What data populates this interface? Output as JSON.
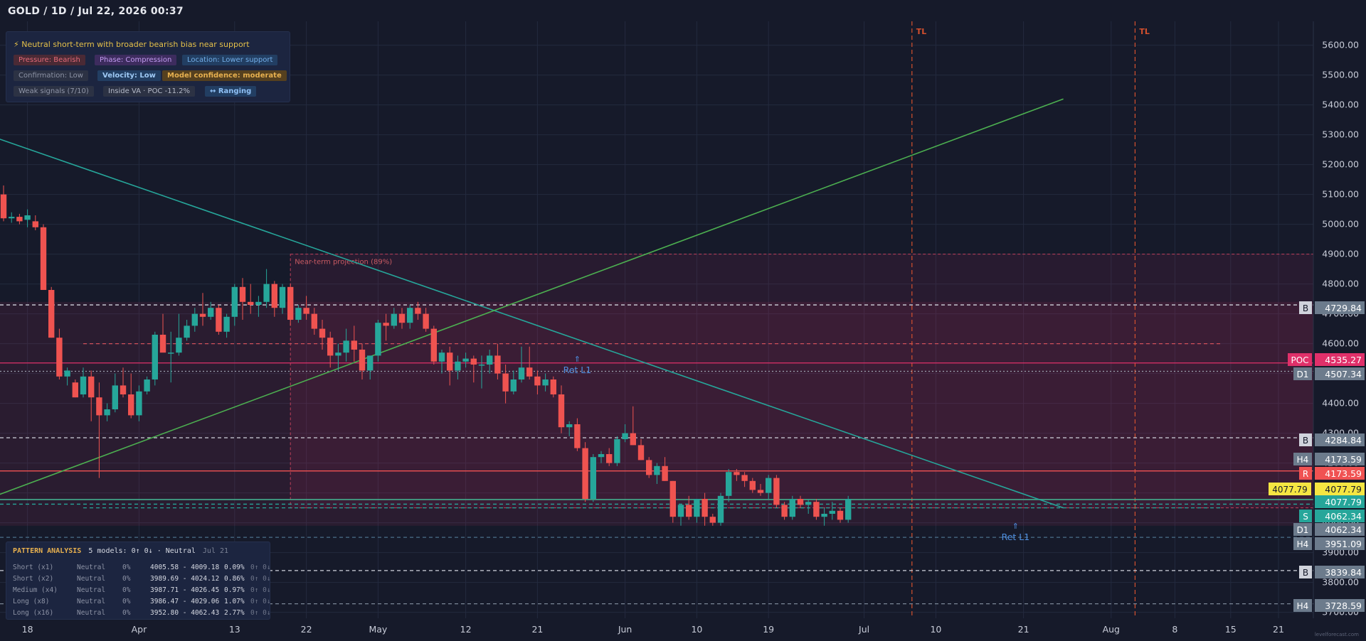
{
  "header": {
    "title": "GOLD / 1D / Jul 22, 2026 00:37"
  },
  "signals": {
    "headline": "⚡ Neutral short-term with broader bearish bias near support",
    "chips": [
      {
        "text": "Pressure: Bearish",
        "bg": "#4a2a35",
        "fg": "#e46a78"
      },
      {
        "text": "Phase: Compression",
        "bg": "#3d2c5e",
        "fg": "#c39cf2"
      },
      {
        "text": "Location: Lower support",
        "bg": "#223e62",
        "fg": "#73aee8"
      },
      {
        "text": "Confirmation: Low",
        "bg": "#2c3244",
        "fg": "#8d93a5"
      },
      {
        "text": "Velocity: Low",
        "bg": "#223e62",
        "fg": "#9fcaf5"
      },
      {
        "text": "Model confidence: moderate",
        "bg": "#55401f",
        "fg": "#e7b04f"
      },
      {
        "text": "Weak signals (7/10)",
        "bg": "#2c3244",
        "fg": "#9096a8"
      },
      {
        "text": "Inside VA · POC -11.2%",
        "bg": "#2c3244",
        "fg": "#b6bbc9"
      },
      {
        "text": "↔ Ranging",
        "bg": "#223e62",
        "fg": "#8fc0f5"
      }
    ]
  },
  "pattern_analysis": {
    "title": "PATTERN ANALYSIS",
    "summary": "5 models: 0↑ 0↓ · Neutral",
    "date": "Jul 21",
    "rows": [
      {
        "name": "Short (x1)",
        "bias": "Neutral",
        "pct": "0%",
        "range": "4005.58 - 4009.18",
        "chg": "0.09%",
        "votes": "0↑ 0↓"
      },
      {
        "name": "Short (x2)",
        "bias": "Neutral",
        "pct": "0%",
        "range": "3989.69 - 4024.12",
        "chg": "0.86%",
        "votes": "0↑ 0↓"
      },
      {
        "name": "Medium (x4)",
        "bias": "Neutral",
        "pct": "0%",
        "range": "3987.71 - 4026.45",
        "chg": "0.97%",
        "votes": "0↑ 0↓"
      },
      {
        "name": "Long (x8)",
        "bias": "Neutral",
        "pct": "0%",
        "range": "3986.47 - 4029.06",
        "chg": "1.07%",
        "votes": "0↑ 0↓"
      },
      {
        "name": "Long (x16)",
        "bias": "Neutral",
        "pct": "0%",
        "range": "3952.80 - 4062.43",
        "chg": "2.77%",
        "votes": "0↑ 0↓"
      }
    ]
  },
  "chart_data": {
    "type": "candlestick",
    "ylim": [
      3680,
      5680
    ],
    "y_ticks": [
      3700,
      3800,
      3900,
      4000,
      4100,
      4200,
      4300,
      4400,
      4500,
      4600,
      4700,
      4800,
      4900,
      5000,
      5100,
      5200,
      5300,
      5400,
      5500,
      5600
    ],
    "x_ticks": [
      {
        "label": "18",
        "day": 3
      },
      {
        "label": "Apr",
        "day": 17
      },
      {
        "label": "13",
        "day": 29
      },
      {
        "label": "22",
        "day": 38
      },
      {
        "label": "May",
        "day": 47
      },
      {
        "label": "12",
        "day": 58
      },
      {
        "label": "21",
        "day": 67
      },
      {
        "label": "Jun",
        "day": 78
      },
      {
        "label": "10",
        "day": 87
      },
      {
        "label": "19",
        "day": 96
      },
      {
        "label": "Jul",
        "day": 108
      },
      {
        "label": "10",
        "day": 117
      },
      {
        "label": "21",
        "day": 128
      },
      {
        "label": "Aug",
        "day": 139
      },
      {
        "label": "8",
        "day": 147
      },
      {
        "label": "15",
        "day": 154
      },
      {
        "label": "21",
        "day": 160
      }
    ],
    "vlines_tl": [
      {
        "label": "TL",
        "day": 114
      },
      {
        "label": "TL",
        "day": 142
      },
      {
        "label": "TL",
        "day": 177
      }
    ],
    "candles": [
      [
        5100,
        5130,
        5010,
        5020
      ],
      [
        5020,
        5040,
        5005,
        5025
      ],
      [
        5025,
        5035,
        5000,
        5010
      ],
      [
        5015,
        5050,
        4990,
        5030
      ],
      [
        5010,
        5030,
        4980,
        4990
      ],
      [
        4990,
        5000,
        4780,
        4780
      ],
      [
        4780,
        4790,
        4620,
        4620
      ],
      [
        4620,
        4650,
        4480,
        4490
      ],
      [
        4490,
        4520,
        4460,
        4510
      ],
      [
        4470,
        4480,
        4420,
        4420
      ],
      [
        4430,
        4520,
        4420,
        4490
      ],
      [
        4490,
        4510,
        4340,
        4420
      ],
      [
        4420,
        4470,
        4150,
        4360
      ],
      [
        4360,
        4400,
        4340,
        4380
      ],
      [
        4380,
        4500,
        4370,
        4460
      ],
      [
        4460,
        4520,
        4420,
        4430
      ],
      [
        4430,
        4500,
        4350,
        4360
      ],
      [
        4360,
        4460,
        4340,
        4440
      ],
      [
        4440,
        4490,
        4430,
        4480
      ],
      [
        4480,
        4640,
        4460,
        4630
      ],
      [
        4630,
        4700,
        4580,
        4570
      ],
      [
        4570,
        4640,
        4470,
        4570
      ],
      [
        4570,
        4700,
        4560,
        4620
      ],
      [
        4620,
        4680,
        4610,
        4660
      ],
      [
        4660,
        4720,
        4640,
        4700
      ],
      [
        4700,
        4770,
        4660,
        4690
      ],
      [
        4690,
        4740,
        4680,
        4720
      ],
      [
        4720,
        4730,
        4630,
        4640
      ],
      [
        4640,
        4700,
        4620,
        4690
      ],
      [
        4690,
        4800,
        4660,
        4790
      ],
      [
        4790,
        4820,
        4680,
        4740
      ],
      [
        4740,
        4800,
        4700,
        4730
      ],
      [
        4730,
        4760,
        4690,
        4740
      ],
      [
        4740,
        4850,
        4720,
        4800
      ],
      [
        4800,
        4810,
        4690,
        4720
      ],
      [
        4720,
        4800,
        4700,
        4790
      ],
      [
        4790,
        4800,
        4660,
        4680
      ],
      [
        4680,
        4730,
        4670,
        4720
      ],
      [
        4720,
        4760,
        4680,
        4700
      ],
      [
        4700,
        4720,
        4630,
        4650
      ],
      [
        4650,
        4680,
        4580,
        4620
      ],
      [
        4620,
        4640,
        4520,
        4560
      ],
      [
        4560,
        4600,
        4510,
        4570
      ],
      [
        4570,
        4650,
        4540,
        4610
      ],
      [
        4610,
        4660,
        4540,
        4580
      ],
      [
        4580,
        4600,
        4480,
        4510
      ],
      [
        4510,
        4560,
        4480,
        4560
      ],
      [
        4560,
        4680,
        4540,
        4670
      ],
      [
        4670,
        4700,
        4610,
        4660
      ],
      [
        4660,
        4720,
        4650,
        4700
      ],
      [
        4700,
        4720,
        4650,
        4670
      ],
      [
        4670,
        4730,
        4650,
        4720
      ],
      [
        4720,
        4740,
        4680,
        4700
      ],
      [
        4700,
        4720,
        4640,
        4650
      ],
      [
        4650,
        4660,
        4530,
        4540
      ],
      [
        4540,
        4580,
        4500,
        4570
      ],
      [
        4570,
        4590,
        4460,
        4510
      ],
      [
        4510,
        4560,
        4480,
        4540
      ],
      [
        4540,
        4570,
        4520,
        4550
      ],
      [
        4550,
        4560,
        4470,
        4530
      ],
      [
        4530,
        4560,
        4450,
        4530
      ],
      [
        4530,
        4580,
        4500,
        4560
      ],
      [
        4560,
        4600,
        4480,
        4500
      ],
      [
        4500,
        4530,
        4400,
        4440
      ],
      [
        4440,
        4510,
        4430,
        4480
      ],
      [
        4480,
        4590,
        4470,
        4520
      ],
      [
        4520,
        4590,
        4480,
        4490
      ],
      [
        4490,
        4510,
        4430,
        4460
      ],
      [
        4460,
        4500,
        4440,
        4480
      ],
      [
        4480,
        4490,
        4420,
        4430
      ],
      [
        4430,
        4460,
        4300,
        4320
      ],
      [
        4320,
        4340,
        4290,
        4330
      ],
      [
        4330,
        4350,
        4240,
        4250
      ],
      [
        4250,
        4270,
        4070,
        4080
      ],
      [
        4080,
        4230,
        4070,
        4220
      ],
      [
        4220,
        4240,
        4200,
        4230
      ],
      [
        4230,
        4250,
        4190,
        4200
      ],
      [
        4200,
        4290,
        4190,
        4280
      ],
      [
        4280,
        4330,
        4270,
        4300
      ],
      [
        4300,
        4390,
        4260,
        4260
      ],
      [
        4260,
        4280,
        4210,
        4210
      ],
      [
        4210,
        4220,
        4150,
        4160
      ],
      [
        4160,
        4200,
        4130,
        4190
      ],
      [
        4190,
        4220,
        4140,
        4140
      ],
      [
        4140,
        4140,
        4000,
        4020
      ],
      [
        4020,
        4060,
        3990,
        4060
      ],
      [
        4060,
        4090,
        4010,
        4020
      ],
      [
        4020,
        4080,
        4000,
        4080
      ],
      [
        4080,
        4100,
        3990,
        4020
      ],
      [
        4020,
        4030,
        3990,
        4000
      ],
      [
        4000,
        4100,
        3990,
        4090
      ],
      [
        4090,
        4180,
        4070,
        4170
      ],
      [
        4170,
        4180,
        4140,
        4160
      ],
      [
        4160,
        4170,
        4120,
        4140
      ],
      [
        4140,
        4150,
        4100,
        4110
      ],
      [
        4110,
        4130,
        4090,
        4100
      ],
      [
        4100,
        4160,
        4080,
        4150
      ],
      [
        4150,
        4160,
        4050,
        4060
      ],
      [
        4060,
        4070,
        4010,
        4020
      ],
      [
        4020,
        4090,
        4010,
        4080
      ],
      [
        4080,
        4090,
        4050,
        4060
      ],
      [
        4060,
        4080,
        4030,
        4070
      ],
      [
        4070,
        4080,
        4010,
        4020
      ],
      [
        4020,
        4050,
        3990,
        4030
      ],
      [
        4030,
        4070,
        4010,
        4040
      ],
      [
        4040,
        4050,
        4000,
        4010
      ],
      [
        4010,
        4090,
        4000,
        4080
      ]
    ],
    "hlines": [
      {
        "price": 4729.84,
        "tag": "B",
        "label": "4729.84",
        "style": "dashed",
        "color": "#d0d3dc"
      },
      {
        "price": 4535.27,
        "tag": "POC",
        "label": "4535.27",
        "style": "solid",
        "color": "#e0306a"
      },
      {
        "price": 4507.34,
        "tag": "D1",
        "label": "4507.34",
        "style": "dotted",
        "color": "#9aa0ad"
      },
      {
        "price": 4284.84,
        "tag": "B",
        "label": "4284.84",
        "style": "dashed",
        "color": "#d0d3dc"
      },
      {
        "price": 4173.59,
        "tag": "H4",
        "label": "4173.59",
        "style": "none",
        "color": "#6c7b8c"
      },
      {
        "price": 4173.59,
        "tag": "R",
        "label": "4173.59",
        "style": "solid",
        "color": "#f05252"
      },
      {
        "price": 4077.79,
        "tag": "",
        "label": "4077.79",
        "style": "solid",
        "color": "#f5e642"
      },
      {
        "price": 4077.79,
        "tag": "",
        "label": "4077.79",
        "style": "solid",
        "color": "#26a69a"
      },
      {
        "price": 4062.34,
        "tag": "S",
        "label": "4062.34",
        "style": "dashed",
        "color": "#26a69a"
      },
      {
        "price": 4062.34,
        "tag": "D1",
        "label": "4062.34",
        "style": "none",
        "color": "#6c7b8c"
      },
      {
        "price": 3951.09,
        "tag": "H4",
        "label": "3951.09",
        "style": "dashed",
        "color": "#4a6f8a"
      },
      {
        "price": 3839.84,
        "tag": "B",
        "label": "3839.84",
        "style": "dashed",
        "color": "#d0d3dc"
      },
      {
        "price": 3728.59,
        "tag": "H4",
        "label": "3728.59",
        "style": "dashed",
        "color": "#7a8696"
      }
    ],
    "projection": {
      "label": "Near-term projection (89%)",
      "day_from": 36,
      "day_to": 183,
      "top": 4900,
      "bottom": 4050
    },
    "annotations": [
      {
        "text": "Ret L1",
        "day": 72,
        "price": 4530
      },
      {
        "text": "Ret L1",
        "day": 127,
        "price": 3970
      }
    ],
    "trendlines": [
      {
        "color": "#26a69a",
        "p1": [
          -1,
          5290
        ],
        "p2": [
          133,
          4050
        ]
      },
      {
        "color": "#4caf50",
        "p1": [
          -1,
          4090
        ],
        "p2": [
          133,
          5420
        ]
      }
    ],
    "watermark": "levelforecast.com",
    "colors": {
      "up": "#26a69a",
      "down": "#ef5350",
      "grid": "#232a3e",
      "bg": "#161a2a",
      "tl": "#d4502e"
    }
  }
}
